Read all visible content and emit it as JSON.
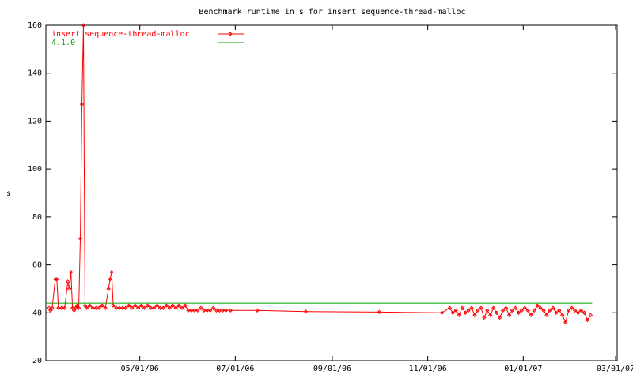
{
  "chart_data": {
    "type": "line",
    "title": "Benchmark runtime in s for insert sequence-thread-malloc",
    "ylabel": "s",
    "xlim": [
      "03/02/06",
      "03/02/07"
    ],
    "xticks": [
      "05/01/06",
      "07/01/06",
      "09/01/06",
      "11/01/06",
      "01/01/07",
      "03/01/07"
    ],
    "ylim": [
      20,
      160
    ],
    "yticks": [
      20,
      40,
      60,
      80,
      100,
      120,
      140,
      160
    ],
    "legend": "upper left",
    "series": [
      {
        "name": "insert sequence-thread-malloc",
        "color": "#ff0000",
        "markers": true,
        "x": [
          "03/04/06",
          "03/05/06",
          "03/06/06",
          "03/08/06",
          "03/09/06",
          "03/10/06",
          "03/12/06",
          "03/14/06",
          "03/16/06",
          "03/17/06",
          "03/18/06",
          "03/19/06",
          "03/20/06",
          "03/21/06",
          "03/22/06",
          "03/23/06",
          "03/24/06",
          "03/25/06",
          "03/26/06",
          "03/27/06",
          "03/28/06",
          "03/30/06",
          "04/01/06",
          "04/03/06",
          "04/05/06",
          "04/07/06",
          "04/09/06",
          "04/11/06",
          "04/12/06",
          "04/13/06",
          "04/14/06",
          "04/16/06",
          "04/18/06",
          "04/20/06",
          "04/22/06",
          "04/24/06",
          "04/26/06",
          "04/28/06",
          "04/30/06",
          "05/02/06",
          "05/04/06",
          "05/06/06",
          "05/08/06",
          "05/10/06",
          "05/12/06",
          "05/14/06",
          "05/16/06",
          "05/18/06",
          "05/20/06",
          "05/22/06",
          "05/24/06",
          "05/26/06",
          "05/28/06",
          "05/30/06",
          "06/01/06",
          "06/03/06",
          "06/05/06",
          "06/07/06",
          "06/09/06",
          "06/11/06",
          "06/13/06",
          "06/15/06",
          "06/17/06",
          "06/19/06",
          "06/21/06",
          "06/23/06",
          "06/25/06",
          "06/28/06",
          "07/15/06",
          "08/15/06",
          "10/01/06",
          "11/10/06",
          "11/15/06",
          "11/17/06",
          "11/19/06",
          "11/21/06",
          "11/23/06",
          "11/25/06",
          "11/27/06",
          "11/29/06",
          "12/01/06",
          "12/03/06",
          "12/05/06",
          "12/07/06",
          "12/09/06",
          "12/11/06",
          "12/13/06",
          "12/15/06",
          "12/17/06",
          "12/19/06",
          "12/21/06",
          "12/23/06",
          "12/25/06",
          "12/27/06",
          "12/29/06",
          "12/31/06",
          "01/02/07",
          "01/04/07",
          "01/06/07",
          "01/08/07",
          "01/10/07",
          "01/12/07",
          "01/14/07",
          "01/16/07",
          "01/18/07",
          "01/20/07",
          "01/22/07",
          "01/24/07",
          "01/26/07",
          "01/28/07",
          "01/30/07",
          "02/01/07",
          "02/03/07",
          "02/05/07",
          "02/07/07",
          "02/09/07",
          "02/11/07",
          "02/13/07"
        ],
        "values": [
          42,
          41,
          42,
          54,
          54,
          42,
          42,
          42,
          53,
          50,
          57,
          42,
          41,
          42,
          43,
          42,
          71,
          127,
          160,
          43,
          42,
          43,
          42,
          42,
          42,
          43,
          42,
          50,
          54,
          57,
          43,
          42,
          42,
          42,
          42,
          43,
          42,
          43,
          42,
          43,
          42,
          43,
          42,
          42,
          43,
          42,
          42,
          43,
          42,
          43,
          42,
          43,
          42,
          43,
          41,
          41,
          41,
          41,
          42,
          41,
          41,
          41,
          42,
          41,
          41,
          41,
          41,
          41,
          41,
          40.5,
          40.3,
          40,
          42,
          40,
          41,
          39,
          42,
          40,
          41,
          42,
          39,
          41,
          42,
          38,
          41,
          39,
          42,
          40,
          38,
          41,
          42,
          39,
          41,
          42,
          40,
          41,
          42,
          41,
          39,
          41,
          43,
          42,
          41,
          39,
          41,
          42,
          40,
          41,
          39,
          36,
          41,
          42,
          41,
          40,
          41,
          40,
          37,
          39
        ]
      },
      {
        "name": "4.1.0",
        "color": "#00a000",
        "markers": false,
        "x": [
          "03/02/06",
          "02/14/07"
        ],
        "values": [
          44,
          44
        ]
      }
    ]
  }
}
